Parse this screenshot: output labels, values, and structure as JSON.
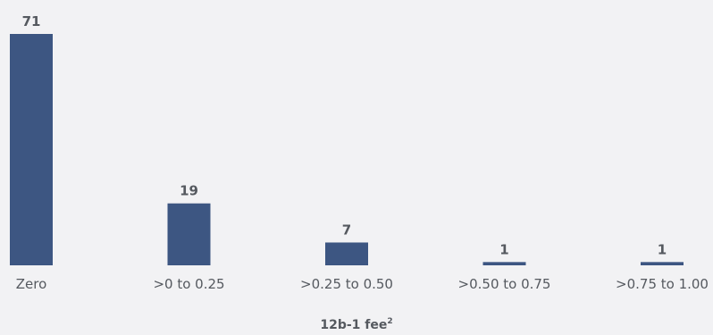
{
  "chart_data": {
    "type": "bar",
    "categories": [
      "Zero",
      ">0 to 0.25",
      ">0.25 to 0.50",
      ">0.50 to 0.75",
      ">0.75 to 1.00"
    ],
    "values": [
      71,
      19,
      7,
      1,
      1
    ],
    "title": "",
    "xlabel": "12b-1 fee",
    "xlabel_superscript": "2",
    "ylabel": "",
    "ylim": [
      0,
      71
    ],
    "bar_color": "#3d5682",
    "grid": false,
    "legend": "none"
  }
}
